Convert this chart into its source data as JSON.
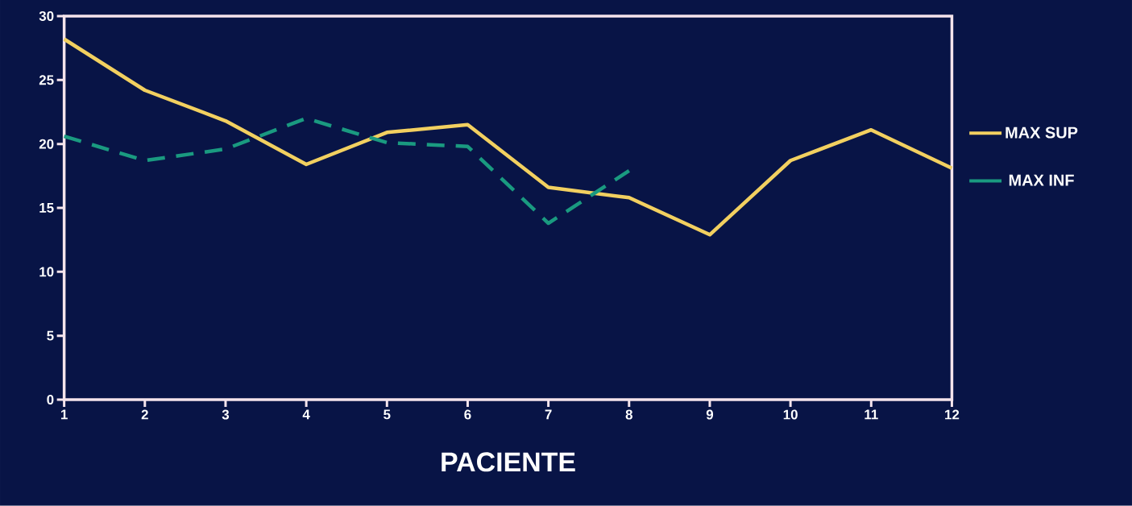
{
  "chart_data": {
    "type": "line",
    "xlabel": "PACIENTE",
    "x": [
      1,
      2,
      3,
      4,
      5,
      6,
      7,
      8,
      9,
      10,
      11,
      12
    ],
    "series": [
      {
        "name": "MAX SUP",
        "color": "#f2d060",
        "line_style": "solid",
        "values": [
          28.2,
          24.2,
          21.8,
          18.4,
          20.9,
          21.5,
          16.6,
          15.8,
          12.9,
          18.7,
          21.1,
          18.1
        ]
      },
      {
        "name": "MAX INF",
        "color": "#1a9a80",
        "line_style": "dashed",
        "values": [
          20.6,
          18.7,
          19.6,
          22.0,
          20.1,
          19.8,
          13.8,
          17.9,
          null,
          null,
          null,
          null
        ]
      }
    ],
    "xlim": [
      1,
      12
    ],
    "ylim": [
      0,
      30
    ],
    "xticks": [
      1,
      2,
      3,
      4,
      5,
      6,
      7,
      8,
      9,
      10,
      11,
      12
    ],
    "yticks": [
      0,
      5,
      10,
      15,
      20,
      25,
      30
    ],
    "grid": false,
    "legend": "right",
    "marker": "none"
  }
}
